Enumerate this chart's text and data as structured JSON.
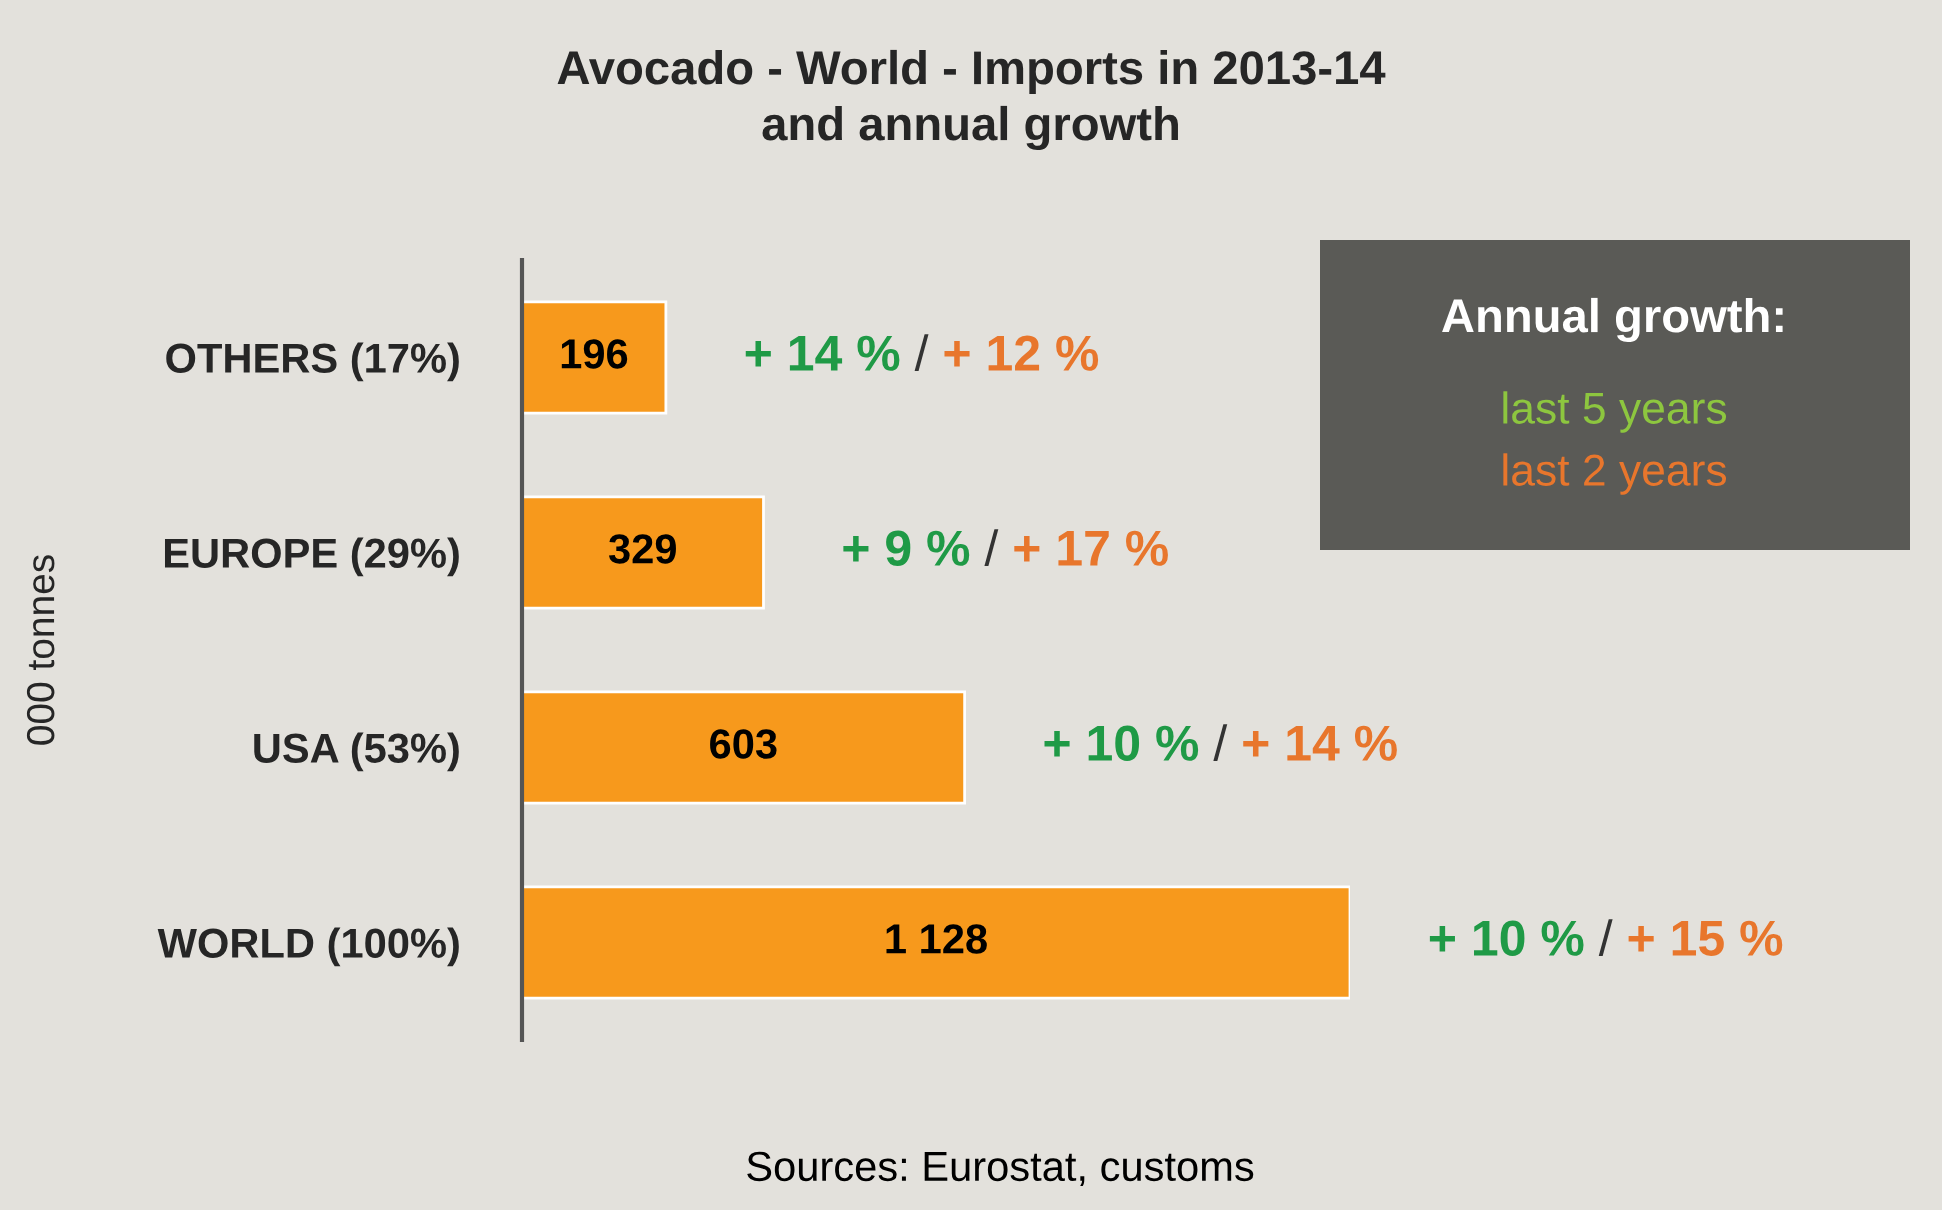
{
  "chart_data": {
    "type": "bar",
    "orientation": "horizontal",
    "title": "Avocado - World - Imports in 2013-14\nand annual growth",
    "ylabel": "000 tonnes",
    "categories": [
      "OTHERS (17%)",
      "EUROPE (29%)",
      "USA (53%)",
      "WORLD (100%)"
    ],
    "series": [
      {
        "color": "#f7991c",
        "values": [
          196,
          329,
          603,
          1128
        ],
        "value_labels": [
          "196",
          "329",
          "603",
          "1 128"
        ]
      }
    ],
    "tick_labels": "y",
    "legend": false,
    "grid": false,
    "annotations": [
      {
        "text": "+ 14 % / + 12 %",
        "x": 196,
        "y": "OTHERS (17%)"
      },
      {
        "text": "+ 9 % / + 17 %",
        "x": 329,
        "y": "EUROPE (29%)"
      },
      {
        "text": "+ 10 % / + 14 %",
        "x": 603,
        "y": "USA (53%)"
      },
      {
        "text": "+ 10 % / + 15 %",
        "x": 1128,
        "y": "WORLD (100%)"
      },
      "Annual growth:",
      "last 5 years",
      "last 2 years",
      "Sources: Eurostat, customs"
    ]
  }
}
